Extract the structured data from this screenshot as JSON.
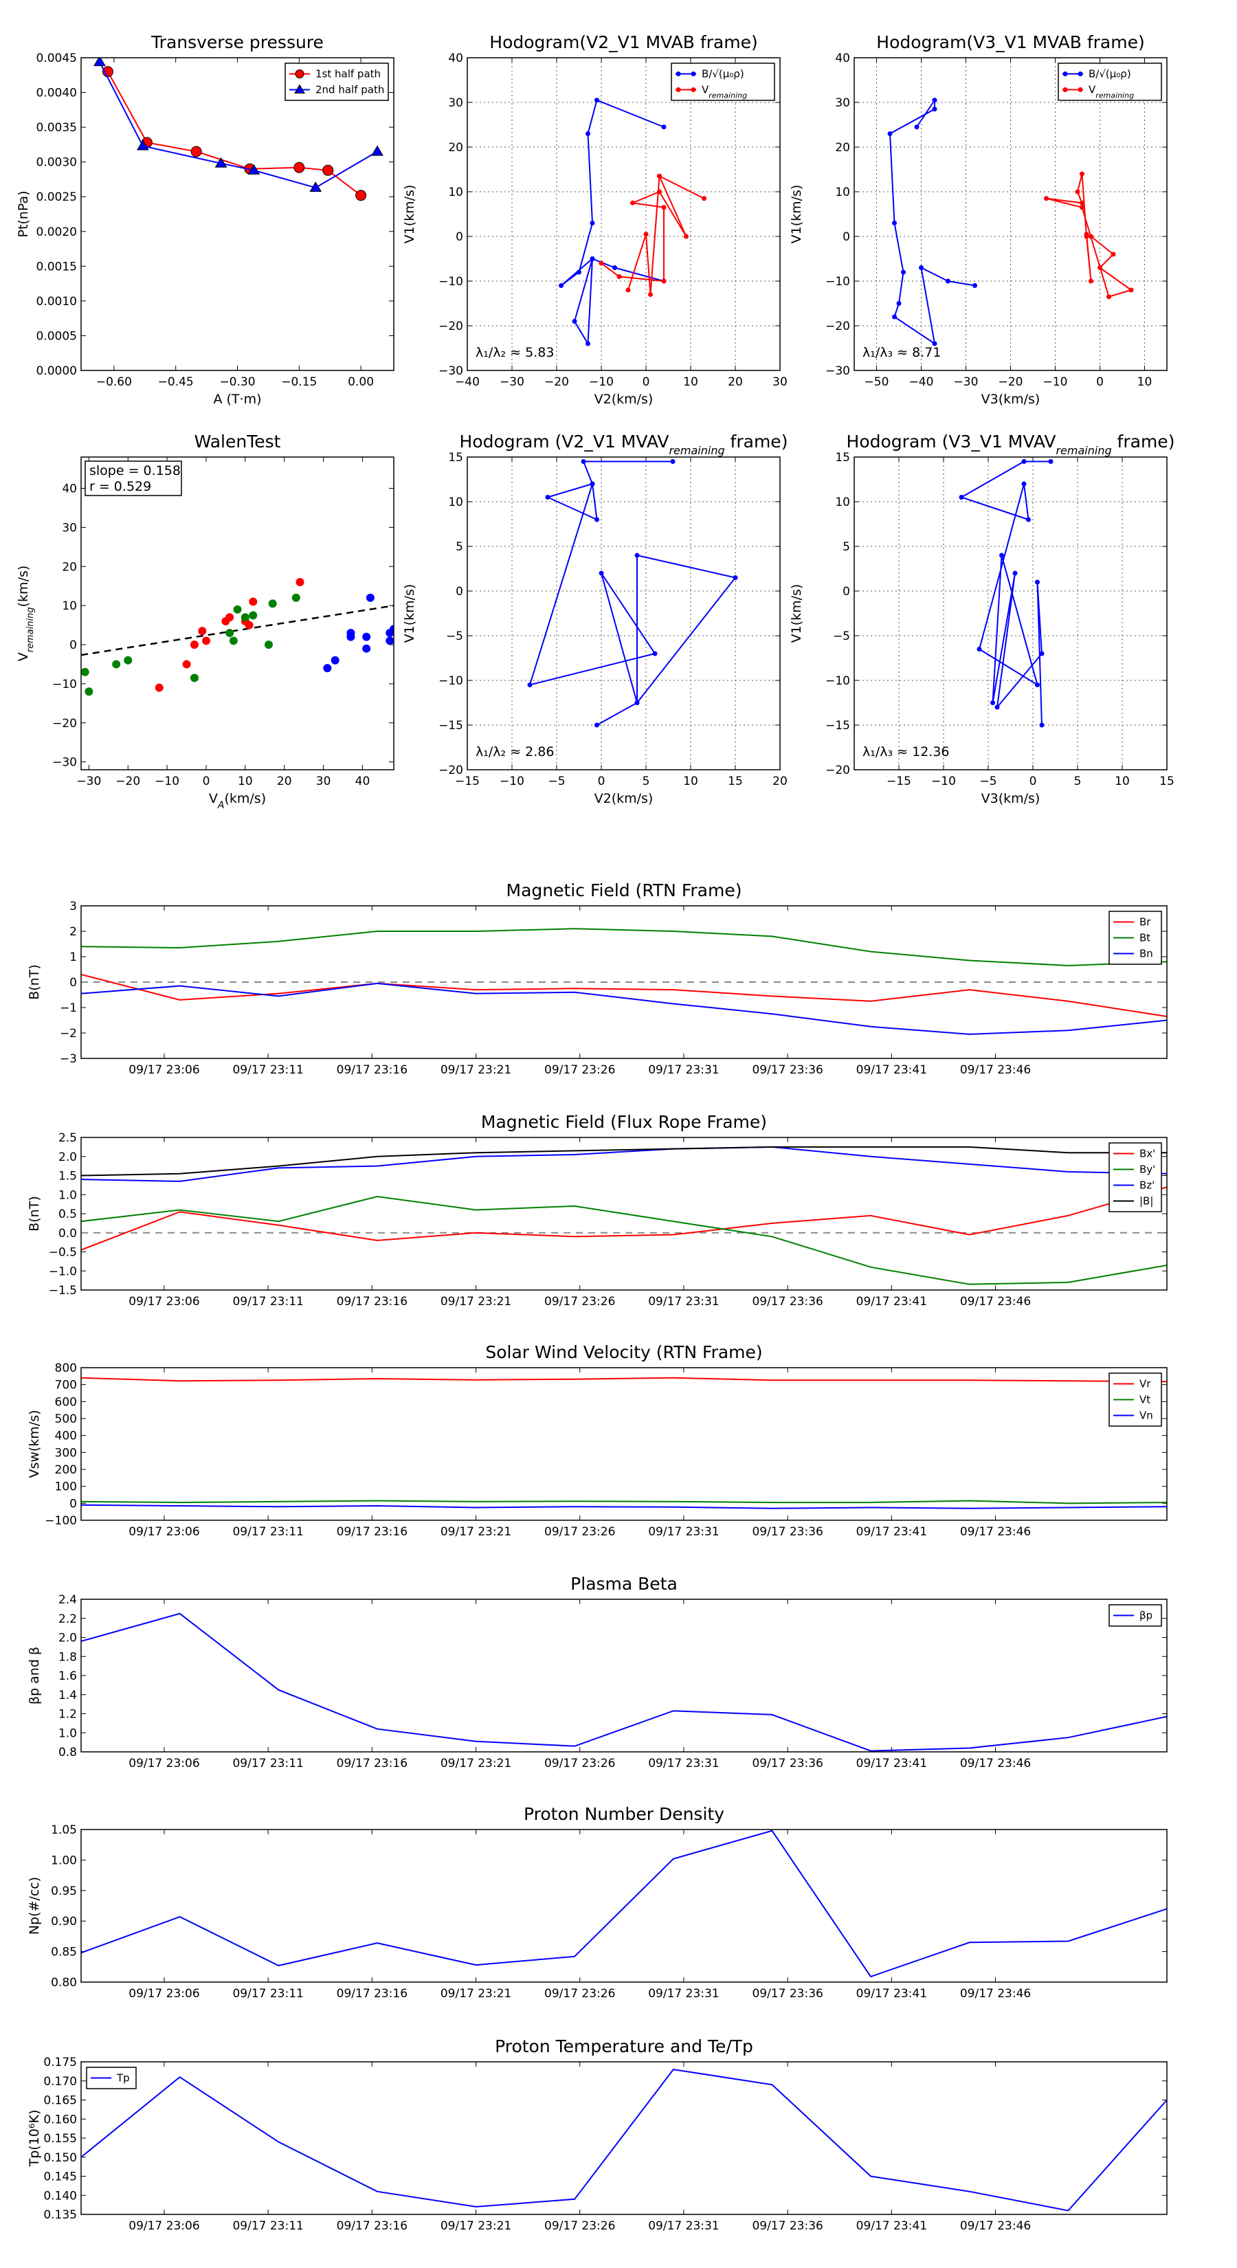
{
  "chart_data": [
    {
      "id": "transverse",
      "type": "line",
      "title": "Transverse pressure",
      "xlabel": "A (T·m)",
      "ylabel": "Pt(nPa)",
      "xlim": [
        -0.68,
        0.08
      ],
      "ylim": [
        0,
        0.0045
      ],
      "xticks": [
        -0.6,
        -0.45,
        -0.3,
        -0.15,
        0.0
      ],
      "xtick_labels": [
        "−0.60",
        "−0.45",
        "−0.30",
        "−0.15",
        "0.00"
      ],
      "yticks": [
        0,
        0.0005,
        0.001,
        0.0015,
        0.002,
        0.0025,
        0.003,
        0.0035,
        0.004,
        0.0045
      ],
      "ytick_labels": [
        "0.0000",
        "0.0005",
        "0.0010",
        "0.0015",
        "0.0020",
        "0.0025",
        "0.0030",
        "0.0035",
        "0.0040",
        "0.0045"
      ],
      "grid": false,
      "legend": "top-right",
      "series": [
        {
          "name": "1st half path",
          "color": "#ff0000",
          "marker": "circle",
          "x": [
            -0.615,
            -0.52,
            -0.4,
            -0.27,
            -0.15,
            -0.08,
            0.0
          ],
          "y": [
            0.0043,
            0.00328,
            0.00315,
            0.0029,
            0.00292,
            0.00288,
            0.00252
          ]
        },
        {
          "name": "2nd half path",
          "color": "#0000ff",
          "marker": "triangle",
          "x": [
            -0.635,
            -0.53,
            -0.34,
            -0.26,
            -0.11,
            0.04
          ],
          "y": [
            0.00444,
            0.00323,
            0.00298,
            0.00288,
            0.00263,
            0.00315
          ]
        }
      ]
    },
    {
      "id": "hodo_v2v1",
      "type": "line",
      "title": "Hodogram(V2_V1 MVAB frame)",
      "xlabel": "V2(km/s)",
      "ylabel": "V1(km/s)",
      "xlim": [
        -40,
        30
      ],
      "ylim": [
        -30,
        40
      ],
      "xticks": [
        -40,
        -30,
        -20,
        -10,
        0,
        10,
        20,
        30
      ],
      "xtick_labels": [
        "−40",
        "−30",
        "−20",
        "−10",
        "0",
        "10",
        "20",
        "30"
      ],
      "yticks": [
        -30,
        -20,
        -10,
        0,
        10,
        20,
        30,
        40
      ],
      "ytick_labels": [
        "−30",
        "−20",
        "−10",
        "0",
        "10",
        "20",
        "30",
        "40"
      ],
      "grid": true,
      "legend": "top-right",
      "annotation": "λ₁/λ₂ ≈ 5.83",
      "series": [
        {
          "name": "B/√(μ₀ρ)",
          "color": "#0000ff",
          "x": [
            4,
            -11,
            -13,
            -12,
            -15,
            -19,
            -12,
            -13,
            -16,
            -12,
            -7,
            4
          ],
          "y": [
            24.5,
            30.5,
            23,
            3,
            -8,
            -11,
            -5,
            -24,
            -19,
            -5,
            -7,
            -10
          ]
        },
        {
          "name": "V_remaining",
          "color": "#ff0000",
          "x": [
            -10,
            -6,
            4,
            4,
            -3,
            3,
            9,
            3,
            13,
            3,
            1,
            0,
            -4
          ],
          "y": [
            -6,
            -9,
            -10,
            6.5,
            7.5,
            10,
            0,
            13.5,
            8.5,
            13.5,
            -13,
            0.5,
            -12
          ]
        }
      ]
    },
    {
      "id": "hodo_v3v1",
      "type": "line",
      "title": "Hodogram(V3_V1 MVAB frame)",
      "xlabel": "V3(km/s)",
      "ylabel": "V1(km/s)",
      "xlim": [
        -55,
        15
      ],
      "ylim": [
        -30,
        40
      ],
      "xticks": [
        -50,
        -40,
        -30,
        -20,
        -10,
        0,
        10
      ],
      "xtick_labels": [
        "−50",
        "−40",
        "−30",
        "−20",
        "−10",
        "0",
        "10"
      ],
      "yticks": [
        -30,
        -20,
        -10,
        0,
        10,
        20,
        30,
        40
      ],
      "ytick_labels": [
        "−30",
        "−20",
        "−10",
        "0",
        "10",
        "20",
        "30",
        "40"
      ],
      "grid": true,
      "legend": "top-right",
      "annotation": "λ₁/λ₃ ≈ 8.71",
      "series": [
        {
          "name": "B/√(μ₀ρ)",
          "color": "#0000ff",
          "x": [
            -41,
            -37,
            -37,
            -47,
            -46,
            -44,
            -45,
            -46,
            -37,
            -40,
            -34,
            -28
          ],
          "y": [
            24.5,
            30.5,
            28.5,
            23,
            3,
            -8,
            -15,
            -18,
            -24,
            -7,
            -10,
            -11
          ]
        },
        {
          "name": "V_remaining",
          "color": "#ff0000",
          "x": [
            -3,
            -2,
            -3,
            -4,
            -5,
            -4,
            -12,
            -4,
            2,
            7,
            0,
            3,
            -2
          ],
          "y": [
            0.5,
            -10,
            0,
            14,
            10,
            7.5,
            8.5,
            6.5,
            -13.5,
            -12,
            -7,
            -4,
            0
          ]
        }
      ]
    },
    {
      "id": "walen",
      "type": "scatter",
      "title": "WalenTest",
      "xlabel": "V_A(km/s)",
      "ylabel": "V_remaining(km/s)",
      "xlim": [
        -32,
        48
      ],
      "ylim": [
        -32,
        48
      ],
      "xticks": [
        -30,
        -20,
        -10,
        0,
        10,
        20,
        30,
        40
      ],
      "xtick_labels": [
        "−30",
        "−20",
        "−10",
        "0",
        "10",
        "20",
        "30",
        "40"
      ],
      "yticks": [
        -30,
        -20,
        -10,
        0,
        10,
        20,
        30,
        40
      ],
      "ytick_labels": [
        "−30",
        "−20",
        "−10",
        "0",
        "10",
        "20",
        "30",
        "40"
      ],
      "grid": false,
      "slope_text": "slope = 0.158",
      "r_text": "r = 0.529",
      "fit": {
        "slope": 0.158,
        "intercept": 2.4,
        "color": "#000000",
        "style": "dashed"
      },
      "series": [
        {
          "color": "#ff0000",
          "x": [
            -12,
            -5,
            -3,
            -1,
            0,
            5,
            6,
            10,
            11,
            12,
            24
          ],
          "y": [
            -11,
            -5,
            0,
            3.5,
            1,
            6,
            7,
            6,
            5,
            11,
            16
          ]
        },
        {
          "color": "#008000",
          "x": [
            -31,
            -30,
            -23,
            -20,
            -3,
            6,
            7,
            8,
            10,
            12,
            16,
            17,
            23
          ],
          "y": [
            -7,
            -12,
            -5,
            -4,
            -8.5,
            3,
            1,
            9,
            7,
            7.5,
            0,
            10.5,
            12
          ]
        },
        {
          "color": "#0000ff",
          "x": [
            31,
            33,
            37,
            37,
            41,
            41,
            42,
            47,
            47,
            48
          ],
          "y": [
            -6,
            -4,
            2,
            3,
            2,
            -1,
            12,
            1,
            3,
            4
          ]
        }
      ]
    },
    {
      "id": "hodo_v2v1_mvav",
      "type": "line",
      "title": "Hodogram (V2_V1 MVAV_remaining frame)",
      "xlabel": "V2(km/s)",
      "ylabel": "V1(km/s)",
      "xlim": [
        -15,
        20
      ],
      "ylim": [
        -20,
        15
      ],
      "xticks": [
        -15,
        -10,
        -5,
        0,
        5,
        10,
        15,
        20
      ],
      "xtick_labels": [
        "−15",
        "−10",
        "−5",
        "0",
        "5",
        "10",
        "15",
        "20"
      ],
      "yticks": [
        -20,
        -15,
        -10,
        -5,
        0,
        5,
        10,
        15
      ],
      "ytick_labels": [
        "−20",
        "−15",
        "−10",
        "−5",
        "0",
        "5",
        "10",
        "15"
      ],
      "grid": true,
      "annotation": "λ₁/λ₂ ≈ 2.86",
      "series": [
        {
          "color": "#0000ff",
          "x": [
            8,
            -2,
            -1,
            -6,
            -0.5,
            -1,
            -8,
            6,
            0,
            4,
            4,
            15,
            4,
            -0.5
          ],
          "y": [
            14.5,
            14.5,
            12,
            10.5,
            8,
            12,
            -10.5,
            -7,
            2,
            -12.5,
            4,
            1.5,
            -12.5,
            -15
          ]
        }
      ]
    },
    {
      "id": "hodo_v3v1_mvav",
      "type": "line",
      "title": "Hodogram (V3_V1 MVAV_remaining frame)",
      "xlabel": "V3(km/s)",
      "ylabel": "V1(km/s)",
      "xlim": [
        -20,
        15
      ],
      "ylim": [
        -20,
        15
      ],
      "xticks": [
        -15,
        -10,
        -5,
        0,
        5,
        10,
        15
      ],
      "xtick_labels": [
        "−15",
        "−10",
        "−5",
        "0",
        "5",
        "10",
        "15"
      ],
      "yticks": [
        -20,
        -15,
        -10,
        -5,
        0,
        5,
        10,
        15
      ],
      "ytick_labels": [
        "−20",
        "−15",
        "−10",
        "−5",
        "0",
        "5",
        "10",
        "15"
      ],
      "grid": true,
      "annotation": "λ₁/λ₃ ≈ 12.36",
      "series": [
        {
          "color": "#0000ff",
          "x": [
            2,
            -1,
            -8,
            -0.5,
            -1,
            -6,
            0.5,
            -3.5,
            -4.5,
            -2,
            -4,
            1,
            0.5,
            1
          ],
          "y": [
            14.5,
            14.5,
            10.5,
            8,
            12,
            -6.5,
            -10.5,
            4,
            -12.5,
            2,
            -13,
            -7,
            1,
            -15
          ]
        }
      ]
    },
    {
      "id": "mag_rtn",
      "type": "line",
      "title": "Magnetic Field (RTN Frame)",
      "ylabel": "B(nT)",
      "ylim": [
        -3,
        3
      ],
      "yticks": [
        -3,
        -2,
        -1,
        0,
        1,
        2,
        3
      ],
      "ytick_labels": [
        "−3",
        "−2",
        "−1",
        "0",
        "1",
        "2",
        "3"
      ],
      "grid": false,
      "legend": "top-right",
      "zero_line": true,
      "series": [
        {
          "name": "Br",
          "color": "#ff0000",
          "y": [
            0.3,
            -0.7,
            -0.45,
            -0.05,
            -0.3,
            -0.25,
            -0.3,
            -0.55,
            -0.75,
            -0.3,
            -0.75,
            -1.35
          ]
        },
        {
          "name": "Bt",
          "color": "#008000",
          "y": [
            1.4,
            1.35,
            1.6,
            2.0,
            2.0,
            2.1,
            2.0,
            1.8,
            1.2,
            0.85,
            0.65,
            0.8
          ]
        },
        {
          "name": "Bn",
          "color": "#0000ff",
          "y": [
            -0.45,
            -0.15,
            -0.55,
            -0.05,
            -0.45,
            -0.4,
            -0.85,
            -1.25,
            -1.75,
            -2.05,
            -1.9,
            -1.5
          ]
        }
      ]
    },
    {
      "id": "mag_fr",
      "type": "line",
      "title": "Magnetic Field (Flux Rope Frame)",
      "ylabel": "B(nT)",
      "ylim": [
        -1.5,
        2.5
      ],
      "yticks": [
        -1.5,
        -1.0,
        -0.5,
        0.0,
        0.5,
        1.0,
        1.5,
        2.0,
        2.5
      ],
      "ytick_labels": [
        "−1.5",
        "−1.0",
        "−0.5",
        "0.0",
        "0.5",
        "1.0",
        "1.5",
        "2.0",
        "2.5"
      ],
      "grid": false,
      "legend": "top-right",
      "zero_line": true,
      "series": [
        {
          "name": "Bx'",
          "color": "#ff0000",
          "y": [
            -0.45,
            0.55,
            0.2,
            -0.2,
            0.0,
            -0.1,
            -0.05,
            0.25,
            0.45,
            -0.05,
            0.45,
            1.2
          ]
        },
        {
          "name": "By'",
          "color": "#008000",
          "y": [
            0.3,
            0.6,
            0.3,
            0.95,
            0.6,
            0.7,
            0.3,
            -0.1,
            -0.9,
            -1.35,
            -1.3,
            -0.85
          ]
        },
        {
          "name": "Bz'",
          "color": "#0000ff",
          "y": [
            1.4,
            1.35,
            1.7,
            1.75,
            2.0,
            2.05,
            2.2,
            2.25,
            2.0,
            1.8,
            1.6,
            1.55
          ]
        },
        {
          "name": "|B|",
          "color": "#000000",
          "y": [
            1.5,
            1.55,
            1.75,
            2.0,
            2.1,
            2.15,
            2.2,
            2.25,
            2.25,
            2.25,
            2.1,
            2.1
          ]
        }
      ]
    },
    {
      "id": "vsw",
      "type": "line",
      "title": "Solar Wind Velocity (RTN Frame)",
      "ylabel": "Vsw(km/s)",
      "ylim": [
        -100,
        800
      ],
      "yticks": [
        -100,
        0,
        100,
        200,
        300,
        400,
        500,
        600,
        700,
        800
      ],
      "ytick_labels": [
        "−100",
        "0",
        "100",
        "200",
        "300",
        "400",
        "500",
        "600",
        "700",
        "800"
      ],
      "grid": false,
      "legend": "top-right",
      "series": [
        {
          "name": "Vr",
          "color": "#ff0000",
          "y": [
            740,
            722,
            726,
            735,
            728,
            732,
            740,
            726,
            726,
            726,
            722,
            718
          ]
        },
        {
          "name": "Vt",
          "color": "#008000",
          "y": [
            10,
            5,
            10,
            15,
            10,
            12,
            10,
            5,
            5,
            15,
            0,
            5
          ]
        },
        {
          "name": "Vn",
          "color": "#0000ff",
          "y": [
            -10,
            -15,
            -20,
            -15,
            -25,
            -20,
            -22,
            -30,
            -25,
            -30,
            -25,
            -20
          ]
        }
      ]
    },
    {
      "id": "beta",
      "type": "line",
      "title": "Plasma Beta",
      "ylabel": "βp and β",
      "ylim": [
        0.8,
        2.4
      ],
      "yticks": [
        0.8,
        1.0,
        1.2,
        1.4,
        1.6,
        1.8,
        2.0,
        2.2,
        2.4
      ],
      "ytick_labels": [
        "0.8",
        "1.0",
        "1.2",
        "1.4",
        "1.6",
        "1.8",
        "2.0",
        "2.2",
        "2.4"
      ],
      "grid": false,
      "legend": "top-right",
      "series": [
        {
          "name": "βp",
          "color": "#0000ff",
          "y": [
            1.96,
            2.25,
            1.45,
            1.04,
            0.91,
            0.86,
            1.23,
            1.19,
            0.81,
            0.84,
            0.95,
            1.17
          ]
        }
      ]
    },
    {
      "id": "np",
      "type": "line",
      "title": "Proton Number Density",
      "ylabel": "Np(#/cc)",
      "ylim": [
        0.8,
        1.05
      ],
      "yticks": [
        0.8,
        0.85,
        0.9,
        0.95,
        1.0,
        1.05
      ],
      "ytick_labels": [
        "0.80",
        "0.85",
        "0.90",
        "0.95",
        "1.00",
        "1.05"
      ],
      "grid": false,
      "series": [
        {
          "color": "#0000ff",
          "y": [
            0.848,
            0.907,
            0.827,
            0.864,
            0.828,
            0.842,
            1.002,
            1.048,
            0.809,
            0.865,
            0.867,
            0.92
          ]
        }
      ]
    },
    {
      "id": "tp",
      "type": "line",
      "title": "Proton Temperature and Te/Tp",
      "ylabel": "Tp(10⁶K)",
      "ylim": [
        0.135,
        0.175
      ],
      "yticks": [
        0.135,
        0.14,
        0.145,
        0.15,
        0.155,
        0.16,
        0.165,
        0.17,
        0.175
      ],
      "ytick_labels": [
        "0.135",
        "0.140",
        "0.145",
        "0.150",
        "0.155",
        "0.160",
        "0.165",
        "0.170",
        "0.175"
      ],
      "grid": false,
      "legend": "top-left",
      "series": [
        {
          "name": "Tp",
          "color": "#0000ff",
          "y": [
            0.15,
            0.171,
            0.154,
            0.141,
            0.137,
            0.139,
            0.173,
            0.169,
            0.145,
            0.141,
            0.136,
            0.165
          ]
        }
      ]
    }
  ],
  "time_axis": {
    "x": [
      0,
      4.75,
      9.5,
      14.25,
      19,
      23.75,
      28.5,
      33.25,
      38,
      42.75,
      47.5,
      52.25
    ],
    "xlim": [
      0,
      52.25
    ],
    "tick_minutes": [
      4,
      9,
      14,
      19,
      24,
      29,
      34,
      39,
      44
    ],
    "tick_labels": [
      "09/17 23:06",
      "09/17 23:11",
      "09/17 23:16",
      "09/17 23:21",
      "09/17 23:26",
      "09/17 23:31",
      "09/17 23:36",
      "09/17 23:41",
      "09/17 23:46"
    ]
  }
}
